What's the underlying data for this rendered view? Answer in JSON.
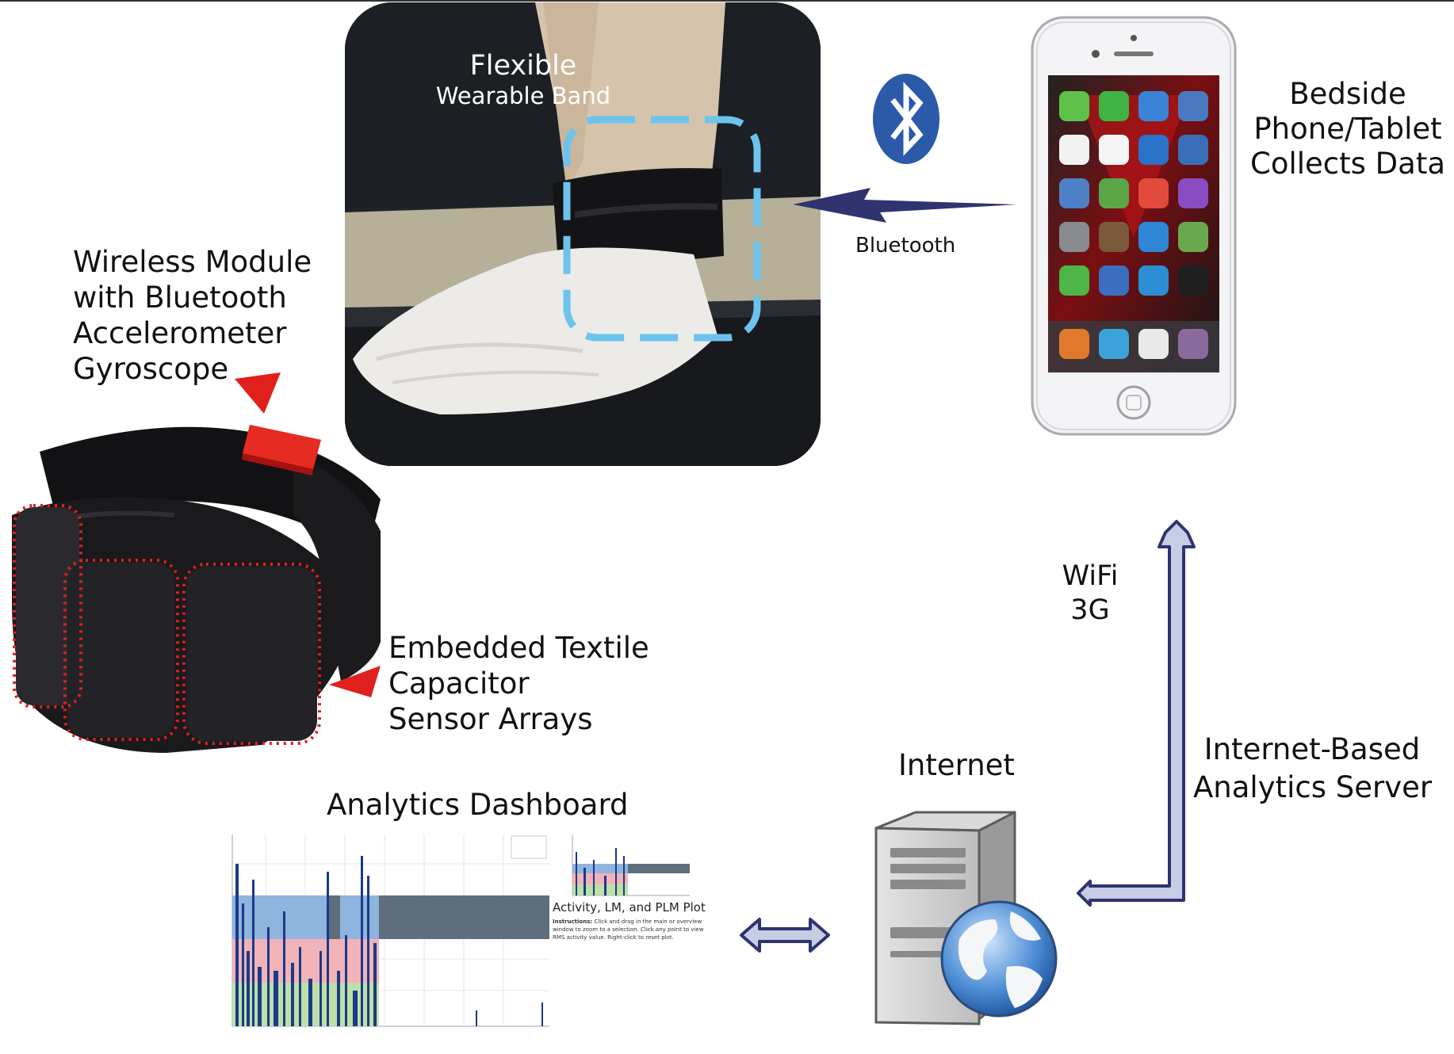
{
  "labels": {
    "photo_title_1": "Flexible",
    "photo_title_2": "Wearable Band",
    "bluetooth": "Bluetooth",
    "phone": [
      "Bedside",
      "Phone/Tablet",
      "Collects Data"
    ],
    "wireless": [
      "Wireless Module",
      "with Bluetooth",
      "Accelerometer",
      "Gyroscope"
    ],
    "textile": [
      "Embedded Textile",
      "Capacitor",
      "Sensor Arrays"
    ],
    "wifi": [
      "WiFi",
      "3G"
    ],
    "server": [
      "Internet-Based",
      "Analytics Server"
    ],
    "internet": "Internet",
    "dashboard": "Analytics Dashboard"
  },
  "dashboard_side": {
    "title": "Activity, LM, and PLM Plot",
    "instructions_label": "Instructions:",
    "instructions_text": "Click and drag in the main or overview window to zoom to a selection. Click any point to view RMS activity value. Right-click to reset plot."
  },
  "colors": {
    "accent_red": "#e0201c",
    "bluetooth_blue": "#2a5aa8",
    "arrow_navy": "#2f3370",
    "arrow_fill": "#c8cde6",
    "dash_blue_band": "#8fb4dd",
    "dash_pink_band": "#f2b3b8",
    "dash_green_band": "#bde0a6",
    "dash_gray_band": "#5f6e7c"
  },
  "icons": [
    "bluetooth-icon",
    "globe-icon",
    "server-tower-icon",
    "home-button-icon"
  ]
}
